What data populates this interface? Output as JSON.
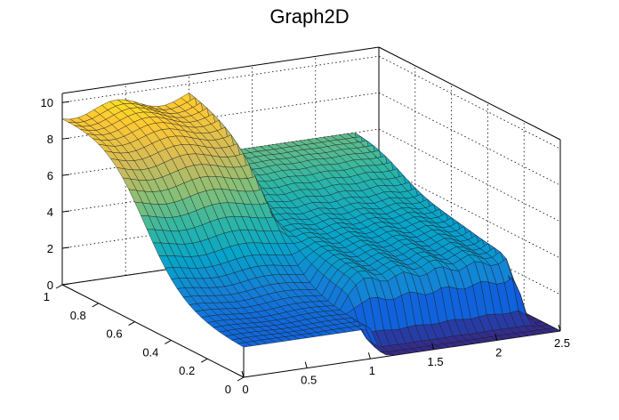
{
  "chart_data": {
    "type": "surface",
    "title": "Graph2D",
    "xlim": [
      0,
      2.5
    ],
    "ylim": [
      0,
      1
    ],
    "zlim": [
      0,
      10.5
    ],
    "x_ticks": [
      "0",
      "0.5",
      "1",
      "1.5",
      "2",
      "2.5"
    ],
    "y_ticks": [
      "0",
      "0.2",
      "0.4",
      "0.6",
      "0.8",
      "1"
    ],
    "z_ticks": [
      "0",
      "2",
      "4",
      "6",
      "8",
      "10"
    ],
    "grid": true,
    "colormap": [
      "#352a87",
      "#0f5cdd",
      "#1481d6",
      "#06a4ca",
      "#2eb7a4",
      "#87bf77",
      "#d1bb59",
      "#fec832",
      "#f9fb0e"
    ],
    "description": "surface ~10 at y=1 (left/back) falling to ~1.5 at y=0 for x<=1; for x>1 a plateau ~3-4 with a sharp cliff to 0 near y=0; right edge x~2.5 near 0"
  }
}
